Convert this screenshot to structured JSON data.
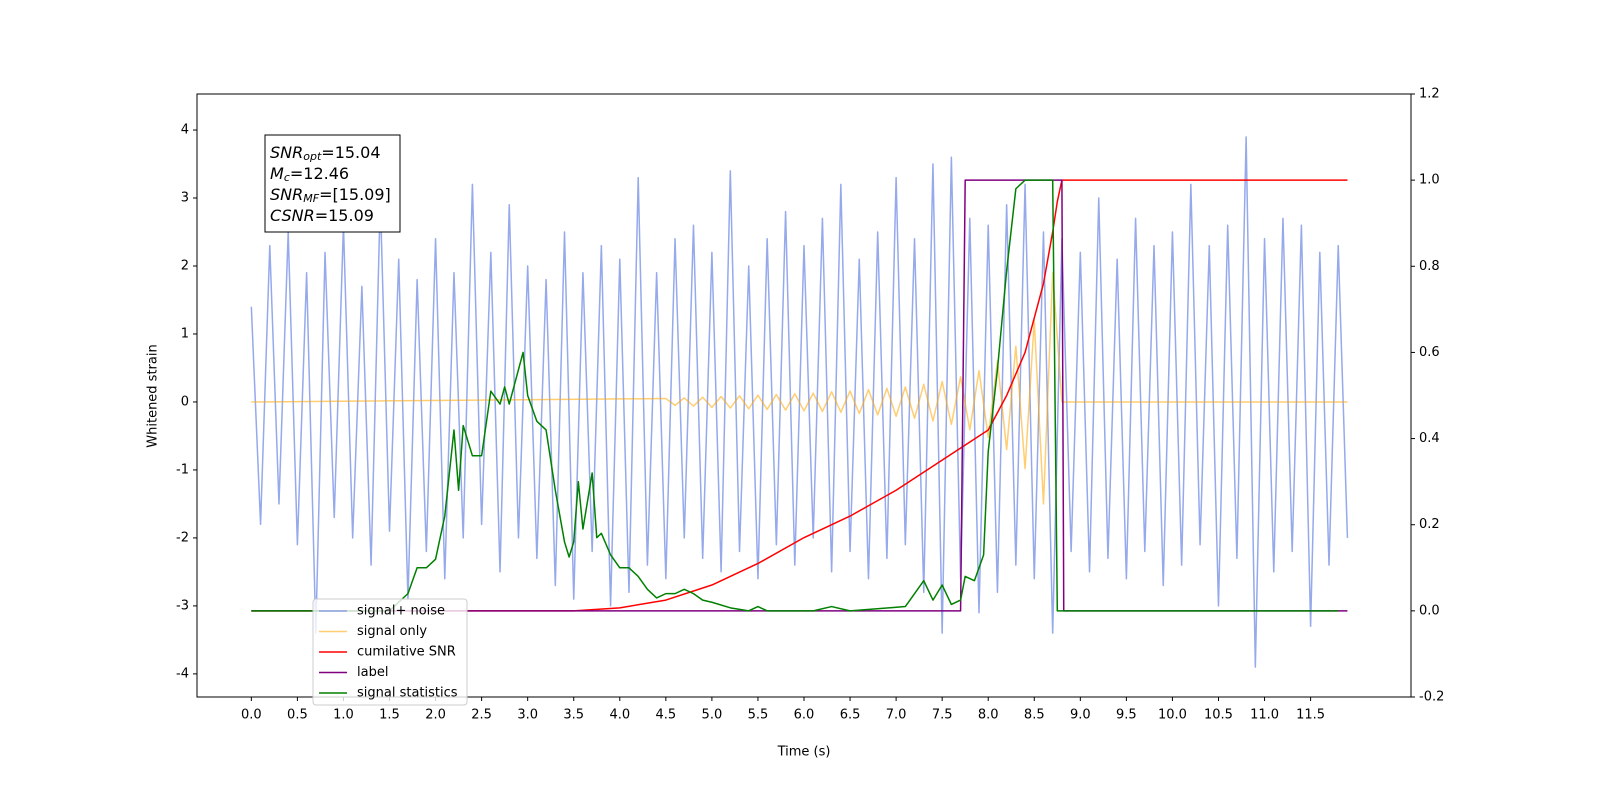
{
  "chart_data": {
    "type": "line",
    "x_label": "Time (s)",
    "y_label": "Whitened strain",
    "xlim": [
      -0.59,
      12.59
    ],
    "ylim": [
      -4.34,
      4.53
    ],
    "y2lim": [
      -0.2,
      1.2
    ],
    "xticks": [
      {
        "value": 0,
        "label": "0.0"
      },
      0.5,
      {
        "value": 1,
        "label": "1.0"
      },
      1.5,
      {
        "value": 2,
        "label": "2.0"
      },
      2.5,
      {
        "value": 3,
        "label": "3.0"
      },
      3.5,
      {
        "value": 4,
        "label": "4.0"
      },
      4.5,
      {
        "value": 5,
        "label": "5.0"
      },
      5.5,
      {
        "value": 6,
        "label": "6.0"
      },
      6.5,
      {
        "value": 7,
        "label": "7.0"
      },
      7.5,
      {
        "value": 8,
        "label": "8.0"
      },
      8.5,
      {
        "value": 9,
        "label": "9.0"
      },
      9.5,
      {
        "value": 10,
        "label": "10.0"
      },
      10.5,
      {
        "value": 11,
        "label": "11.0"
      },
      11.5
    ],
    "yticks": [
      -4,
      -3,
      -2,
      -1,
      0,
      1,
      2,
      3,
      4
    ],
    "y2ticks": [
      -0.2,
      {
        "value": 0,
        "label": "0.0"
      },
      0.2,
      0.4,
      0.6,
      0.8,
      {
        "value": 1,
        "label": "1.0"
      },
      1.2
    ],
    "legend": "lower left",
    "annotation": {
      "lines": [
        {
          "main": "SNR",
          "sub": "opt",
          "rest": "=15.04"
        },
        {
          "main": "M",
          "sub": "c",
          "rest": "=12.46"
        },
        {
          "main": "SNR",
          "sub": "MF",
          "rest": "=[15.09]"
        },
        {
          "main": "CSNR",
          "sub": "",
          "rest": "=15.09"
        }
      ]
    },
    "series": [
      {
        "name": "signal+ noise",
        "color": "#7b93e6",
        "x": [
          0.0,
          0.1,
          0.2,
          0.3,
          0.4,
          0.5,
          0.6,
          0.7,
          0.8,
          0.9,
          1.0,
          1.1,
          1.2,
          1.3,
          1.4,
          1.5,
          1.6,
          1.7,
          1.8,
          1.9,
          2.0,
          2.1,
          2.2,
          2.3,
          2.4,
          2.5,
          2.6,
          2.7,
          2.8,
          2.9,
          3.0,
          3.1,
          3.2,
          3.3,
          3.4,
          3.5,
          3.6,
          3.7,
          3.8,
          3.9,
          4.0,
          4.1,
          4.2,
          4.3,
          4.4,
          4.5,
          4.6,
          4.7,
          4.8,
          4.9,
          5.0,
          5.1,
          5.2,
          5.3,
          5.4,
          5.5,
          5.6,
          5.7,
          5.8,
          5.9,
          6.0,
          6.1,
          6.2,
          6.3,
          6.4,
          6.5,
          6.6,
          6.7,
          6.8,
          6.9,
          7.0,
          7.1,
          7.2,
          7.3,
          7.4,
          7.5,
          7.6,
          7.7,
          7.8,
          7.9,
          8.0,
          8.1,
          8.2,
          8.3,
          8.4,
          8.5,
          8.6,
          8.7,
          8.8,
          8.9,
          9.0,
          9.1,
          9.2,
          9.3,
          9.4,
          9.5,
          9.6,
          9.7,
          9.8,
          9.9,
          10.0,
          10.1,
          10.2,
          10.3,
          10.4,
          10.5,
          10.6,
          10.7,
          10.8,
          10.9,
          11.0,
          11.1,
          11.2,
          11.3,
          11.4,
          11.5,
          11.6,
          11.7,
          11.8,
          11.9
        ],
        "values": [
          1.4,
          -1.8,
          2.3,
          -1.5,
          2.5,
          -2.1,
          1.9,
          -3.4,
          2.2,
          -1.7,
          2.6,
          -2.0,
          1.7,
          -2.4,
          3.0,
          -1.9,
          2.1,
          -2.9,
          1.8,
          -2.2,
          2.4,
          -2.6,
          1.9,
          -2.0,
          3.2,
          -1.8,
          2.2,
          -2.5,
          2.9,
          -2.0,
          2.0,
          -2.3,
          1.8,
          -2.7,
          2.5,
          -2.9,
          1.9,
          -2.2,
          2.3,
          -3.0,
          2.1,
          -2.8,
          3.3,
          -2.4,
          1.9,
          -2.6,
          2.4,
          -2.0,
          2.6,
          -2.3,
          2.2,
          -2.5,
          3.4,
          -2.2,
          2.0,
          -2.6,
          2.4,
          -2.1,
          2.8,
          -2.4,
          2.3,
          -2.0,
          2.7,
          -2.5,
          3.2,
          -2.2,
          2.1,
          -2.6,
          2.5,
          -2.3,
          3.3,
          -2.1,
          2.4,
          -2.8,
          3.5,
          -3.4,
          3.6,
          -2.6,
          2.7,
          -3.1,
          2.6,
          -2.8,
          2.9,
          -2.4,
          3.2,
          -2.6,
          2.5,
          -3.4,
          2.4,
          -2.2,
          2.2,
          -2.5,
          3.0,
          -2.3,
          2.1,
          -2.6,
          2.7,
          -2.2,
          2.3,
          -2.7,
          2.5,
          -2.4,
          3.2,
          -2.1,
          2.3,
          -3.0,
          2.6,
          -2.3,
          3.9,
          -3.9,
          2.4,
          -2.5,
          2.7,
          -2.2,
          2.6,
          -3.3,
          2.2,
          -2.4,
          2.3,
          -2.0
        ]
      },
      {
        "name": "signal only",
        "color": "#ffa500",
        "x": [
          0.0,
          4.5,
          4.6,
          4.7,
          4.8,
          4.9,
          5.0,
          5.1,
          5.2,
          5.3,
          5.4,
          5.5,
          5.6,
          5.7,
          5.8,
          5.9,
          6.0,
          6.1,
          6.2,
          6.3,
          6.4,
          6.5,
          6.6,
          6.7,
          6.8,
          6.9,
          7.0,
          7.1,
          7.2,
          7.3,
          7.4,
          7.5,
          7.6,
          7.7,
          7.8,
          7.9,
          8.0,
          8.1,
          8.2,
          8.3,
          8.4,
          8.5,
          8.6,
          8.7,
          8.8,
          11.9
        ],
        "values": [
          0,
          0.05,
          -0.05,
          0.06,
          -0.06,
          0.07,
          -0.08,
          0.08,
          -0.09,
          0.09,
          -0.1,
          0.1,
          -0.11,
          0.11,
          -0.12,
          0.12,
          -0.13,
          0.13,
          -0.14,
          0.15,
          -0.15,
          0.16,
          -0.17,
          0.18,
          -0.19,
          0.2,
          -0.21,
          0.22,
          -0.24,
          0.26,
          -0.28,
          0.3,
          -0.33,
          0.37,
          -0.41,
          0.46,
          -0.52,
          0.6,
          -0.7,
          0.82,
          -0.98,
          1.2,
          -1.5,
          1.9,
          0,
          0
        ]
      },
      {
        "name": "cumilative SNR",
        "color": "#ff0000",
        "axis": "y2",
        "x": [
          0.0,
          3.5,
          4.0,
          4.5,
          5.0,
          5.5,
          6.0,
          6.5,
          7.0,
          7.5,
          8.0,
          8.2,
          8.4,
          8.5,
          8.6,
          8.7,
          8.75,
          8.8,
          11.9
        ],
        "values": [
          0,
          0,
          0.007,
          0.025,
          0.06,
          0.11,
          0.17,
          0.22,
          0.28,
          0.35,
          0.42,
          0.5,
          0.6,
          0.68,
          0.76,
          0.88,
          0.95,
          1.0,
          1.0
        ]
      },
      {
        "name": "label",
        "color": "#800080",
        "axis": "y2",
        "x": [
          0.0,
          7.7,
          7.75,
          8.8,
          8.82,
          11.9
        ],
        "values": [
          0,
          0,
          1,
          1,
          0,
          0
        ]
      },
      {
        "name": "signal statistics",
        "color": "#008000",
        "axis": "y2",
        "x": [
          0.0,
          1.5,
          1.7,
          1.8,
          1.9,
          2.0,
          2.1,
          2.2,
          2.25,
          2.3,
          2.4,
          2.5,
          2.6,
          2.7,
          2.75,
          2.8,
          2.9,
          2.95,
          3.0,
          3.1,
          3.2,
          3.3,
          3.4,
          3.45,
          3.5,
          3.55,
          3.6,
          3.7,
          3.75,
          3.8,
          3.9,
          4.0,
          4.1,
          4.2,
          4.3,
          4.4,
          4.5,
          4.6,
          4.7,
          4.8,
          4.9,
          5.0,
          5.2,
          5.4,
          5.5,
          5.6,
          6.1,
          6.3,
          6.5,
          7.1,
          7.2,
          7.3,
          7.4,
          7.5,
          7.6,
          7.7,
          7.75,
          7.85,
          7.95,
          8.0,
          8.1,
          8.2,
          8.3,
          8.4,
          8.7,
          8.75,
          11.8
        ],
        "values": [
          0,
          0,
          0.04,
          0.1,
          0.1,
          0.12,
          0.22,
          0.42,
          0.28,
          0.43,
          0.36,
          0.36,
          0.51,
          0.48,
          0.52,
          0.48,
          0.56,
          0.6,
          0.5,
          0.44,
          0.42,
          0.28,
          0.16,
          0.125,
          0.16,
          0.3,
          0.19,
          0.32,
          0.17,
          0.18,
          0.13,
          0.1,
          0.1,
          0.08,
          0.05,
          0.03,
          0.04,
          0.04,
          0.05,
          0.04,
          0.025,
          0.02,
          0.007,
          0,
          0.01,
          0,
          0,
          0.01,
          0,
          0.01,
          0.04,
          0.07,
          0.025,
          0.06,
          0.015,
          0.025,
          0.08,
          0.07,
          0.13,
          0.37,
          0.56,
          0.79,
          0.98,
          1,
          1,
          0,
          0
        ]
      }
    ]
  }
}
